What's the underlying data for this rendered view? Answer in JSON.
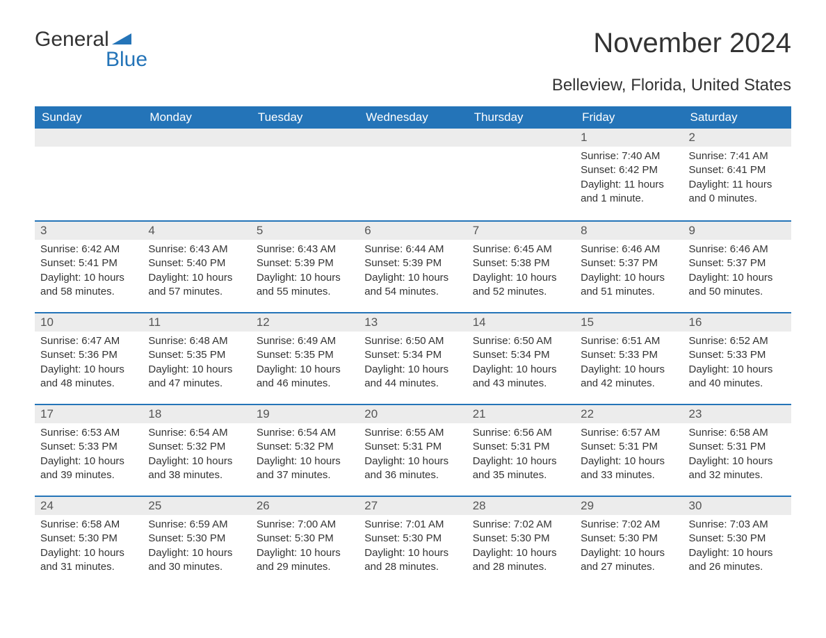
{
  "brand": {
    "part1": "General",
    "part2": "Blue",
    "icon_color": "#2474b8",
    "text_color": "#333333"
  },
  "title": "November 2024",
  "subtitle": "Belleview, Florida, United States",
  "colors": {
    "header_bg": "#2474b8",
    "header_text": "#ffffff",
    "daynum_bg": "#ececec",
    "row_border": "#2474b8",
    "body_text": "#333333",
    "page_bg": "#ffffff"
  },
  "day_headers": [
    "Sunday",
    "Monday",
    "Tuesday",
    "Wednesday",
    "Thursday",
    "Friday",
    "Saturday"
  ],
  "weeks": [
    [
      null,
      null,
      null,
      null,
      null,
      {
        "n": "1",
        "sunrise": "7:40 AM",
        "sunset": "6:42 PM",
        "daylight": "11 hours and 1 minute."
      },
      {
        "n": "2",
        "sunrise": "7:41 AM",
        "sunset": "6:41 PM",
        "daylight": "11 hours and 0 minutes."
      }
    ],
    [
      {
        "n": "3",
        "sunrise": "6:42 AM",
        "sunset": "5:41 PM",
        "daylight": "10 hours and 58 minutes."
      },
      {
        "n": "4",
        "sunrise": "6:43 AM",
        "sunset": "5:40 PM",
        "daylight": "10 hours and 57 minutes."
      },
      {
        "n": "5",
        "sunrise": "6:43 AM",
        "sunset": "5:39 PM",
        "daylight": "10 hours and 55 minutes."
      },
      {
        "n": "6",
        "sunrise": "6:44 AM",
        "sunset": "5:39 PM",
        "daylight": "10 hours and 54 minutes."
      },
      {
        "n": "7",
        "sunrise": "6:45 AM",
        "sunset": "5:38 PM",
        "daylight": "10 hours and 52 minutes."
      },
      {
        "n": "8",
        "sunrise": "6:46 AM",
        "sunset": "5:37 PM",
        "daylight": "10 hours and 51 minutes."
      },
      {
        "n": "9",
        "sunrise": "6:46 AM",
        "sunset": "5:37 PM",
        "daylight": "10 hours and 50 minutes."
      }
    ],
    [
      {
        "n": "10",
        "sunrise": "6:47 AM",
        "sunset": "5:36 PM",
        "daylight": "10 hours and 48 minutes."
      },
      {
        "n": "11",
        "sunrise": "6:48 AM",
        "sunset": "5:35 PM",
        "daylight": "10 hours and 47 minutes."
      },
      {
        "n": "12",
        "sunrise": "6:49 AM",
        "sunset": "5:35 PM",
        "daylight": "10 hours and 46 minutes."
      },
      {
        "n": "13",
        "sunrise": "6:50 AM",
        "sunset": "5:34 PM",
        "daylight": "10 hours and 44 minutes."
      },
      {
        "n": "14",
        "sunrise": "6:50 AM",
        "sunset": "5:34 PM",
        "daylight": "10 hours and 43 minutes."
      },
      {
        "n": "15",
        "sunrise": "6:51 AM",
        "sunset": "5:33 PM",
        "daylight": "10 hours and 42 minutes."
      },
      {
        "n": "16",
        "sunrise": "6:52 AM",
        "sunset": "5:33 PM",
        "daylight": "10 hours and 40 minutes."
      }
    ],
    [
      {
        "n": "17",
        "sunrise": "6:53 AM",
        "sunset": "5:33 PM",
        "daylight": "10 hours and 39 minutes."
      },
      {
        "n": "18",
        "sunrise": "6:54 AM",
        "sunset": "5:32 PM",
        "daylight": "10 hours and 38 minutes."
      },
      {
        "n": "19",
        "sunrise": "6:54 AM",
        "sunset": "5:32 PM",
        "daylight": "10 hours and 37 minutes."
      },
      {
        "n": "20",
        "sunrise": "6:55 AM",
        "sunset": "5:31 PM",
        "daylight": "10 hours and 36 minutes."
      },
      {
        "n": "21",
        "sunrise": "6:56 AM",
        "sunset": "5:31 PM",
        "daylight": "10 hours and 35 minutes."
      },
      {
        "n": "22",
        "sunrise": "6:57 AM",
        "sunset": "5:31 PM",
        "daylight": "10 hours and 33 minutes."
      },
      {
        "n": "23",
        "sunrise": "6:58 AM",
        "sunset": "5:31 PM",
        "daylight": "10 hours and 32 minutes."
      }
    ],
    [
      {
        "n": "24",
        "sunrise": "6:58 AM",
        "sunset": "5:30 PM",
        "daylight": "10 hours and 31 minutes."
      },
      {
        "n": "25",
        "sunrise": "6:59 AM",
        "sunset": "5:30 PM",
        "daylight": "10 hours and 30 minutes."
      },
      {
        "n": "26",
        "sunrise": "7:00 AM",
        "sunset": "5:30 PM",
        "daylight": "10 hours and 29 minutes."
      },
      {
        "n": "27",
        "sunrise": "7:01 AM",
        "sunset": "5:30 PM",
        "daylight": "10 hours and 28 minutes."
      },
      {
        "n": "28",
        "sunrise": "7:02 AM",
        "sunset": "5:30 PM",
        "daylight": "10 hours and 28 minutes."
      },
      {
        "n": "29",
        "sunrise": "7:02 AM",
        "sunset": "5:30 PM",
        "daylight": "10 hours and 27 minutes."
      },
      {
        "n": "30",
        "sunrise": "7:03 AM",
        "sunset": "5:30 PM",
        "daylight": "10 hours and 26 minutes."
      }
    ]
  ],
  "labels": {
    "sunrise": "Sunrise: ",
    "sunset": "Sunset: ",
    "daylight": "Daylight: "
  }
}
